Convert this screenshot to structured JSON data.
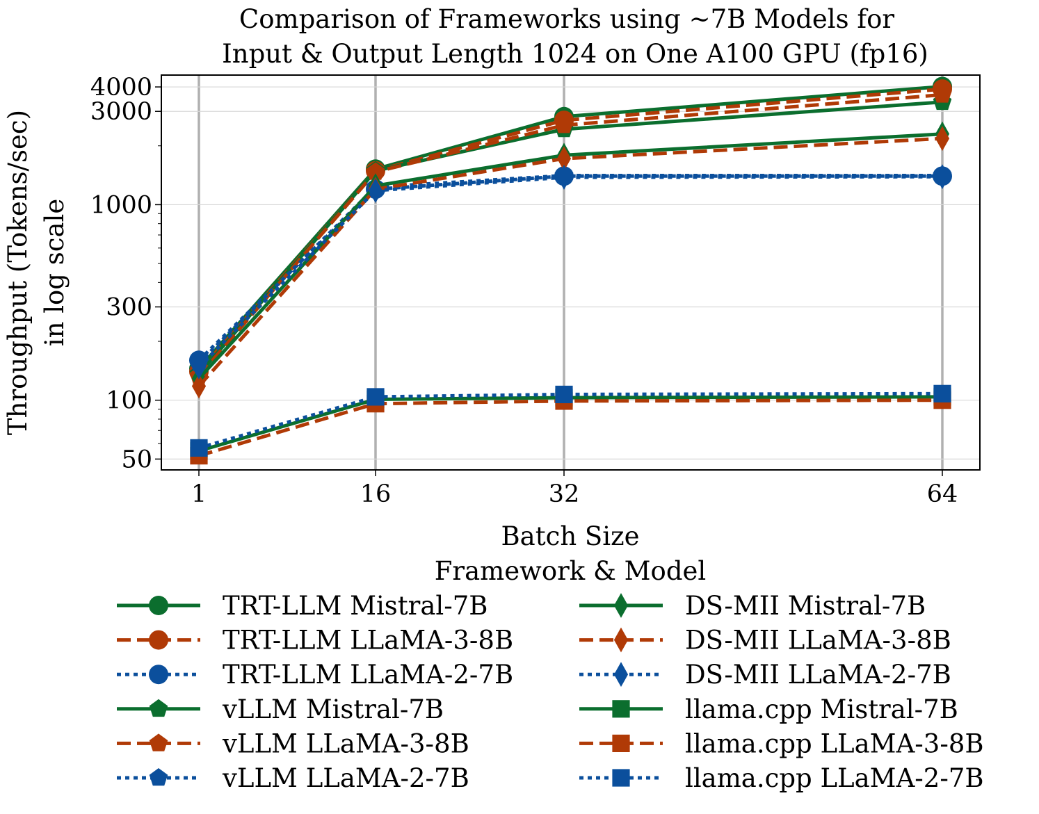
{
  "chart_data": {
    "type": "line",
    "title_lines": [
      "Comparison of Frameworks using ~7B Models for",
      "Input & Output Length 1024 on One A100 GPU (fp16)"
    ],
    "xlabel": "Batch Size",
    "ylabel_lines": [
      "Throughput (Tokens/sec)",
      "in log scale"
    ],
    "yscale": "log",
    "ylim": [
      44,
      4600
    ],
    "x_categories": [
      "1",
      "16",
      "32",
      "64"
    ],
    "y_ticks": [
      50,
      100,
      300,
      1000,
      3000,
      4000
    ],
    "y_tick_labels": [
      "50",
      "100",
      "300",
      "1000",
      "3000",
      "4000"
    ],
    "legend_title": "Framework & Model",
    "colors": {
      "green": "#0b6e2e",
      "orange": "#b03a06",
      "blue": "#0b4f9c"
    },
    "series": [
      {
        "name": "TRT-LLM Mistral-7B",
        "color": "green",
        "dash": "solid",
        "marker": "circle",
        "values": [
          145,
          1520,
          2820,
          4020
        ]
      },
      {
        "name": "TRT-LLM LLaMA-3-8B",
        "color": "orange",
        "dash": "dashed",
        "marker": "circle",
        "values": [
          140,
          1490,
          2700,
          3900
        ]
      },
      {
        "name": "TRT-LLM LLaMA-2-7B",
        "color": "blue",
        "dash": "dotted",
        "marker": "circle",
        "values": [
          160,
          1200,
          1400,
          1400
        ]
      },
      {
        "name": "vLLM Mistral-7B",
        "color": "green",
        "dash": "solid",
        "marker": "pentagon",
        "values": [
          136,
          1490,
          2430,
          3350
        ]
      },
      {
        "name": "vLLM LLaMA-3-8B",
        "color": "orange",
        "dash": "dashed",
        "marker": "pentagon",
        "values": [
          133,
          1470,
          2550,
          3650
        ]
      },
      {
        "name": "vLLM LLaMA-2-7B",
        "color": "blue",
        "dash": "dotted",
        "marker": "pentagon",
        "values": [
          155,
          1230,
          1410,
          1410
        ]
      },
      {
        "name": "DS-MII Mistral-7B",
        "color": "green",
        "dash": "solid",
        "marker": "diamond",
        "values": [
          129,
          1250,
          1790,
          2300
        ]
      },
      {
        "name": "DS-MII LLaMA-3-8B",
        "color": "orange",
        "dash": "dashed",
        "marker": "diamond",
        "values": [
          118,
          1200,
          1720,
          2180
        ]
      },
      {
        "name": "DS-MII LLaMA-2-7B",
        "color": "blue",
        "dash": "dotted",
        "marker": "diamond",
        "values": [
          148,
          1180,
          1380,
          1390
        ]
      },
      {
        "name": "llama.cpp Mistral-7B",
        "color": "green",
        "dash": "solid",
        "marker": "square",
        "values": [
          55,
          101,
          103,
          104
        ]
      },
      {
        "name": "llama.cpp LLaMA-3-8B",
        "color": "orange",
        "dash": "dashed",
        "marker": "square",
        "values": [
          52,
          96,
          99,
          100
        ]
      },
      {
        "name": "llama.cpp LLaMA-2-7B",
        "color": "blue",
        "dash": "dotted",
        "marker": "square",
        "values": [
          57,
          104,
          107,
          108
        ]
      }
    ]
  }
}
